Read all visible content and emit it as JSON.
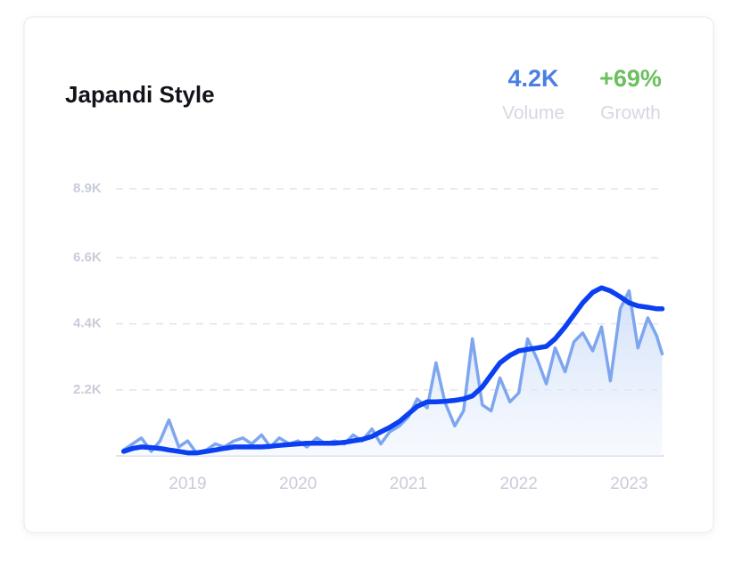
{
  "chart_data": {
    "type": "line",
    "title": "Japandi Style",
    "stats": [
      {
        "value": "4.2K",
        "label": "Volume",
        "color": "#4a7fe3"
      },
      {
        "value": "+69%",
        "label": "Growth",
        "color": "#6cbf5f"
      }
    ],
    "x": [
      2018.42,
      2018.5,
      2018.58,
      2018.67,
      2018.75,
      2018.83,
      2018.92,
      2019.0,
      2019.08,
      2019.17,
      2019.25,
      2019.33,
      2019.42,
      2019.5,
      2019.58,
      2019.67,
      2019.75,
      2019.83,
      2019.92,
      2020.0,
      2020.08,
      2020.17,
      2020.25,
      2020.33,
      2020.42,
      2020.5,
      2020.58,
      2020.67,
      2020.75,
      2020.83,
      2020.92,
      2021.0,
      2021.08,
      2021.17,
      2021.25,
      2021.33,
      2021.42,
      2021.5,
      2021.58,
      2021.67,
      2021.75,
      2021.83,
      2021.92,
      2022.0,
      2022.08,
      2022.17,
      2022.25,
      2022.33,
      2022.42,
      2022.5,
      2022.58,
      2022.67,
      2022.75,
      2022.83,
      2022.92,
      2023.0,
      2023.08,
      2023.17,
      2023.25,
      2023.3
    ],
    "series": [
      {
        "color": "#7ea6ef",
        "area": true,
        "values": [
          200,
          400,
          600,
          150,
          500,
          1200,
          300,
          500,
          100,
          200,
          400,
          300,
          500,
          600,
          400,
          700,
          300,
          600,
          400,
          500,
          300,
          600,
          400,
          500,
          400,
          700,
          500,
          900,
          400,
          800,
          1000,
          1300,
          1900,
          1600,
          3100,
          1800,
          1000,
          1500,
          3900,
          1700,
          1500,
          2600,
          1800,
          2100,
          3900,
          3200,
          2400,
          3600,
          2800,
          3800,
          4100,
          3500,
          4300,
          2500,
          4900,
          5500,
          3600,
          4600,
          4000,
          3400
        ]
      },
      {
        "color": "#0a3ff2",
        "area": false,
        "values": [
          150,
          250,
          300,
          280,
          250,
          200,
          150,
          100,
          100,
          150,
          200,
          250,
          300,
          300,
          300,
          300,
          320,
          350,
          380,
          400,
          420,
          420,
          420,
          420,
          450,
          500,
          550,
          650,
          800,
          950,
          1150,
          1400,
          1650,
          1800,
          1800,
          1820,
          1850,
          1900,
          2000,
          2300,
          2700,
          3100,
          3350,
          3500,
          3550,
          3600,
          3650,
          3900,
          4300,
          4700,
          5100,
          5450,
          5600,
          5500,
          5300,
          5100,
          5000,
          4950,
          4900,
          4900
        ]
      }
    ],
    "xlim": [
      2018.35,
      2023.32
    ],
    "xticks": [
      2019,
      2020,
      2021,
      2022,
      2023
    ],
    "ylim": [
      0,
      8900
    ],
    "yticks": [
      {
        "value": 2200,
        "label": "2.2K"
      },
      {
        "value": 4400,
        "label": "4.4K"
      },
      {
        "value": 6600,
        "label": "6.6K"
      },
      {
        "value": 8900,
        "label": "8.9K"
      }
    ],
    "grid": true
  }
}
